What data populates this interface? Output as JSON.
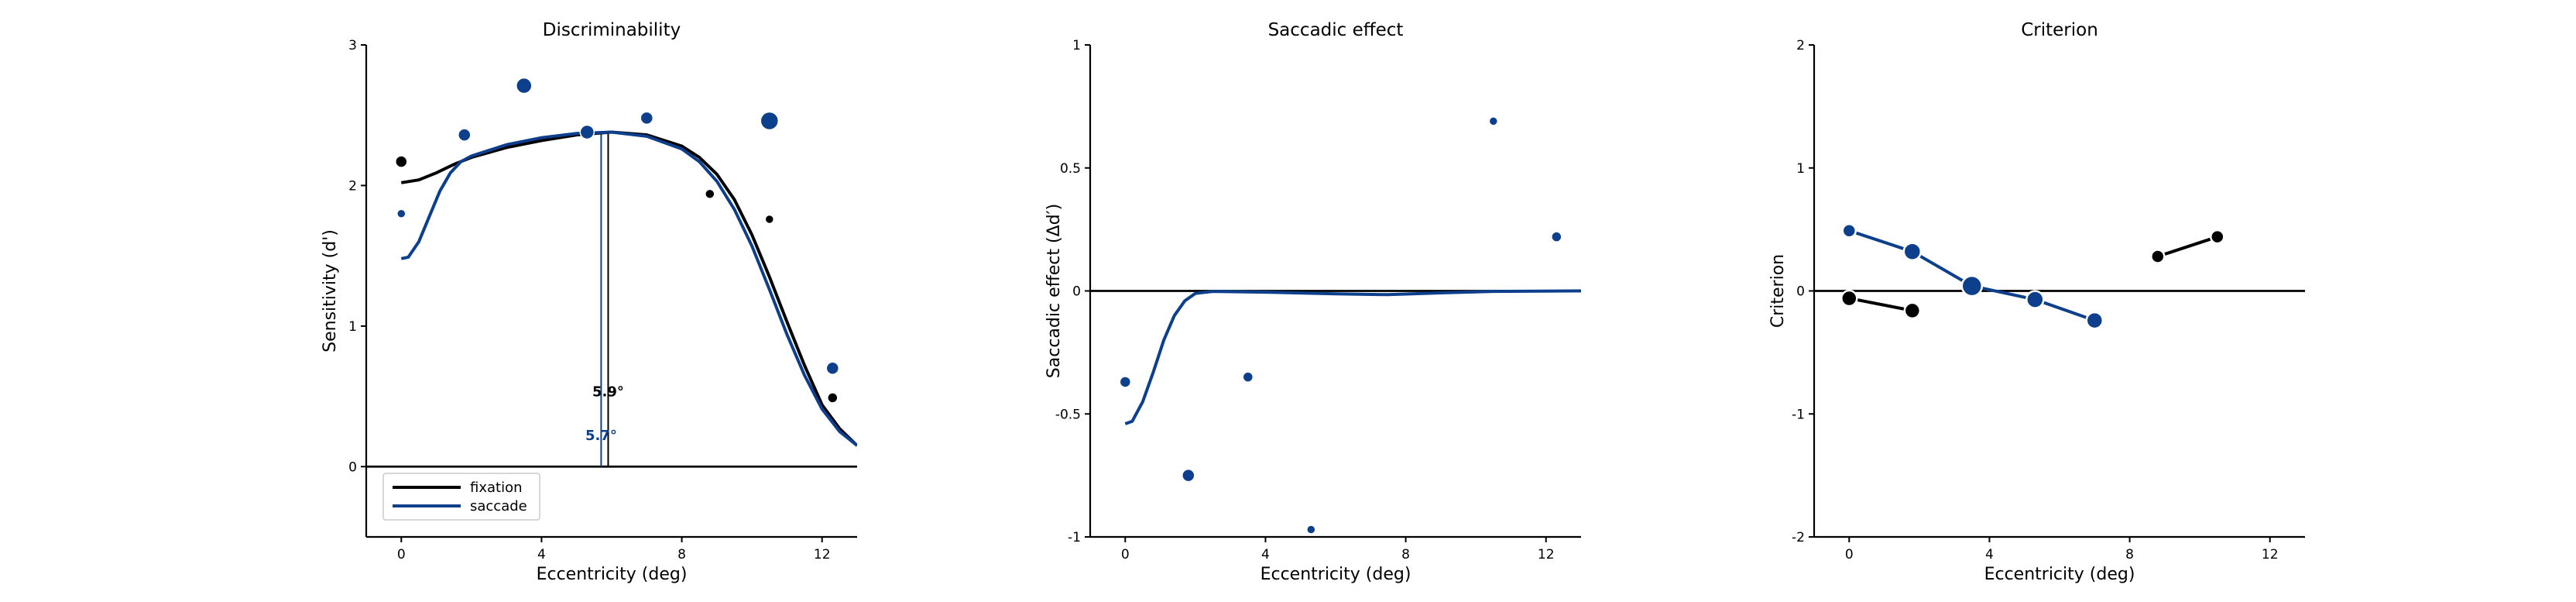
{
  "colors": {
    "fixation": "#000000",
    "saccade": "#0d3f8c",
    "background": "#ffffff"
  },
  "chart_data": [
    {
      "type": "scatter",
      "title": "Discriminability",
      "xlabel": "Eccentricity (deg)",
      "ylabel": "Sensitivity (d')",
      "xlim": [
        -1,
        13
      ],
      "ylim": [
        -0.5,
        3
      ],
      "xticks": [
        0,
        4,
        8,
        12
      ],
      "yticks": [
        0,
        1,
        2,
        3
      ],
      "zero_line": true,
      "legend": {
        "placement": "lower-left",
        "entries": [
          "fixation",
          "saccade"
        ]
      },
      "series": [
        {
          "name": "fixation",
          "color": "#000000",
          "points": [
            {
              "x": 0,
              "y": 2.17,
              "s": 7.5
            },
            {
              "x": 8.8,
              "y": 1.94,
              "s": 6
            },
            {
              "x": 10.5,
              "y": 1.76,
              "s": 5.5
            },
            {
              "x": 12.3,
              "y": 0.49,
              "s": 6.5
            }
          ],
          "curve": [
            [
              0,
              2.02
            ],
            [
              0.5,
              2.04
            ],
            [
              1.0,
              2.09
            ],
            [
              1.5,
              2.15
            ],
            [
              2.0,
              2.2
            ],
            [
              3.0,
              2.27
            ],
            [
              4.0,
              2.32
            ],
            [
              5.0,
              2.36
            ],
            [
              6.0,
              2.38
            ],
            [
              7.0,
              2.36
            ],
            [
              8.0,
              2.28
            ],
            [
              8.5,
              2.2
            ],
            [
              9.0,
              2.08
            ],
            [
              9.5,
              1.9
            ],
            [
              10.0,
              1.65
            ],
            [
              10.5,
              1.35
            ],
            [
              11.0,
              1.03
            ],
            [
              11.5,
              0.72
            ],
            [
              12.0,
              0.44
            ],
            [
              12.5,
              0.27
            ],
            [
              13.0,
              0.15
            ]
          ]
        },
        {
          "name": "saccade",
          "color": "#0d3f8c",
          "points": [
            {
              "x": 0,
              "y": 1.8,
              "s": 5.5
            },
            {
              "x": 1.8,
              "y": 2.36,
              "s": 8
            },
            {
              "x": 3.5,
              "y": 2.71,
              "s": 10
            },
            {
              "x": 5.3,
              "y": 2.38,
              "s": 9
            },
            {
              "x": 7.0,
              "y": 2.48,
              "s": 8
            },
            {
              "x": 10.5,
              "y": 2.46,
              "s": 11.5
            },
            {
              "x": 12.3,
              "y": 0.7,
              "s": 8
            }
          ],
          "curve": [
            [
              0,
              1.48
            ],
            [
              0.2,
              1.49
            ],
            [
              0.5,
              1.6
            ],
            [
              0.8,
              1.78
            ],
            [
              1.1,
              1.96
            ],
            [
              1.4,
              2.09
            ],
            [
              1.7,
              2.17
            ],
            [
              2.0,
              2.21
            ],
            [
              3.0,
              2.29
            ],
            [
              4.0,
              2.34
            ],
            [
              5.0,
              2.37
            ],
            [
              6.0,
              2.38
            ],
            [
              7.0,
              2.35
            ],
            [
              8.0,
              2.26
            ],
            [
              8.5,
              2.17
            ],
            [
              9.0,
              2.03
            ],
            [
              9.5,
              1.83
            ],
            [
              10.0,
              1.57
            ],
            [
              10.5,
              1.26
            ],
            [
              11.0,
              0.94
            ],
            [
              11.5,
              0.65
            ],
            [
              12.0,
              0.41
            ],
            [
              12.5,
              0.25
            ],
            [
              13.0,
              0.15
            ]
          ]
        }
      ],
      "vlines": [
        {
          "series": "fixation",
          "x": 5.9,
          "label": "5.9°",
          "label_y": 0.5
        },
        {
          "series": "saccade",
          "x": 5.7,
          "label": "5.7°",
          "label_y": 0.19
        }
      ]
    },
    {
      "type": "scatter",
      "title": "Saccadic effect",
      "xlabel": "Eccentricity (deg)",
      "ylabel": "Saccadic effect (Δd′)",
      "xlim": [
        -1,
        13
      ],
      "ylim": [
        -1,
        1
      ],
      "xticks": [
        0,
        4,
        8,
        12
      ],
      "yticks": [
        1,
        0.5,
        0,
        -0.5,
        -1
      ],
      "ytick_labels": [
        "1",
        "0.5",
        "0",
        "-0.5",
        "-1"
      ],
      "zero_line": true,
      "series": [
        {
          "name": "saccade",
          "color": "#0d3f8c",
          "points": [
            {
              "x": 0,
              "y": -0.37,
              "s": 7
            },
            {
              "x": 1.8,
              "y": -0.75,
              "s": 8
            },
            {
              "x": 3.5,
              "y": -0.35,
              "s": 6.5
            },
            {
              "x": 5.3,
              "y": -0.97,
              "s": 5.5
            },
            {
              "x": 10.5,
              "y": 0.69,
              "s": 5.5
            },
            {
              "x": 12.3,
              "y": 0.22,
              "s": 6.5
            }
          ],
          "curve": [
            [
              0,
              -0.54
            ],
            [
              0.2,
              -0.53
            ],
            [
              0.5,
              -0.45
            ],
            [
              0.8,
              -0.33
            ],
            [
              1.1,
              -0.2
            ],
            [
              1.4,
              -0.1
            ],
            [
              1.7,
              -0.04
            ],
            [
              2.0,
              -0.01
            ],
            [
              2.5,
              -0.002
            ],
            [
              4,
              -0.005
            ],
            [
              6,
              -0.012
            ],
            [
              7.5,
              -0.015
            ],
            [
              9,
              -0.008
            ],
            [
              10.5,
              -0.002
            ],
            [
              13,
              0
            ]
          ]
        }
      ]
    },
    {
      "type": "line",
      "title": "Criterion",
      "xlabel": "Eccentricity (deg)",
      "ylabel": "Criterion",
      "xlim": [
        -1,
        13
      ],
      "ylim": [
        -2,
        2
      ],
      "xticks": [
        0,
        4,
        8,
        12
      ],
      "yticks": [
        2,
        1,
        0,
        -1,
        -2
      ],
      "zero_line": true,
      "series": [
        {
          "name": "fixation",
          "color": "#000000",
          "segments": [
            [
              {
                "x": 0,
                "y": -0.06,
                "s": 8
              },
              {
                "x": 1.8,
                "y": -0.16,
                "s": 8
              }
            ],
            [
              {
                "x": 8.8,
                "y": 0.28,
                "s": 6.5
              },
              {
                "x": 10.5,
                "y": 0.44,
                "s": 6.5
              }
            ]
          ]
        },
        {
          "name": "saccade",
          "color": "#0d3f8c",
          "segments": [
            [
              {
                "x": 0,
                "y": 0.49,
                "s": 6.5
              },
              {
                "x": 1.8,
                "y": 0.32,
                "s": 9
              },
              {
                "x": 3.5,
                "y": 0.04,
                "s": 11
              },
              {
                "x": 5.3,
                "y": -0.07,
                "s": 9
              },
              {
                "x": 7.0,
                "y": -0.24,
                "s": 8.5
              }
            ]
          ]
        }
      ]
    }
  ]
}
